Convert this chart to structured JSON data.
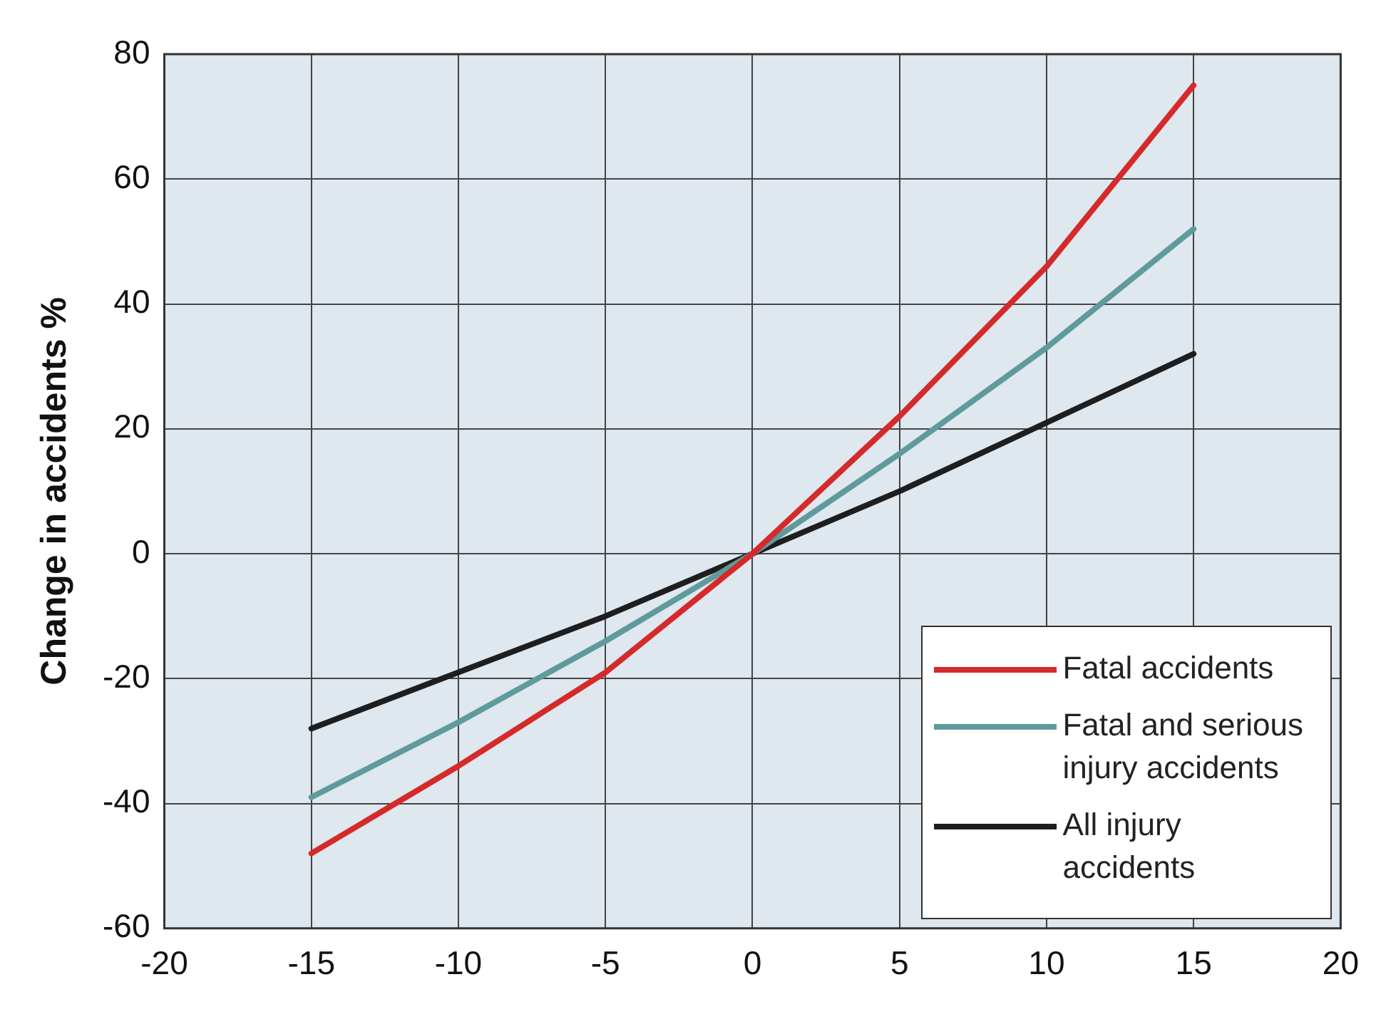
{
  "chart_data": {
    "type": "line",
    "ylabel": "Change in accidents %",
    "x": [
      -15,
      -10,
      -5,
      0,
      5,
      10,
      15
    ],
    "series": [
      {
        "name": "Fatal accidents",
        "color": "#d42a2a",
        "values": [
          -48,
          -34,
          -19,
          0,
          22,
          46,
          75
        ]
      },
      {
        "name": "Fatal and serious injury accidents",
        "color": "#5f9a9c",
        "values": [
          -39,
          -27,
          -14,
          0,
          16,
          33,
          52
        ]
      },
      {
        "name": "All injury accidents",
        "color": "#1e1e1e",
        "values": [
          -28,
          -19,
          -10,
          0,
          10,
          21,
          32
        ]
      }
    ],
    "xlim": [
      -20,
      20
    ],
    "xticks": [
      -20,
      -15,
      -10,
      -5,
      0,
      5,
      10,
      15,
      20
    ],
    "ylim": [
      -60,
      80
    ],
    "yticks": [
      -60,
      -40,
      -20,
      0,
      20,
      40,
      60,
      80
    ],
    "grid": true,
    "legend": "bottom right",
    "marker": "none",
    "line_style": "solid"
  }
}
